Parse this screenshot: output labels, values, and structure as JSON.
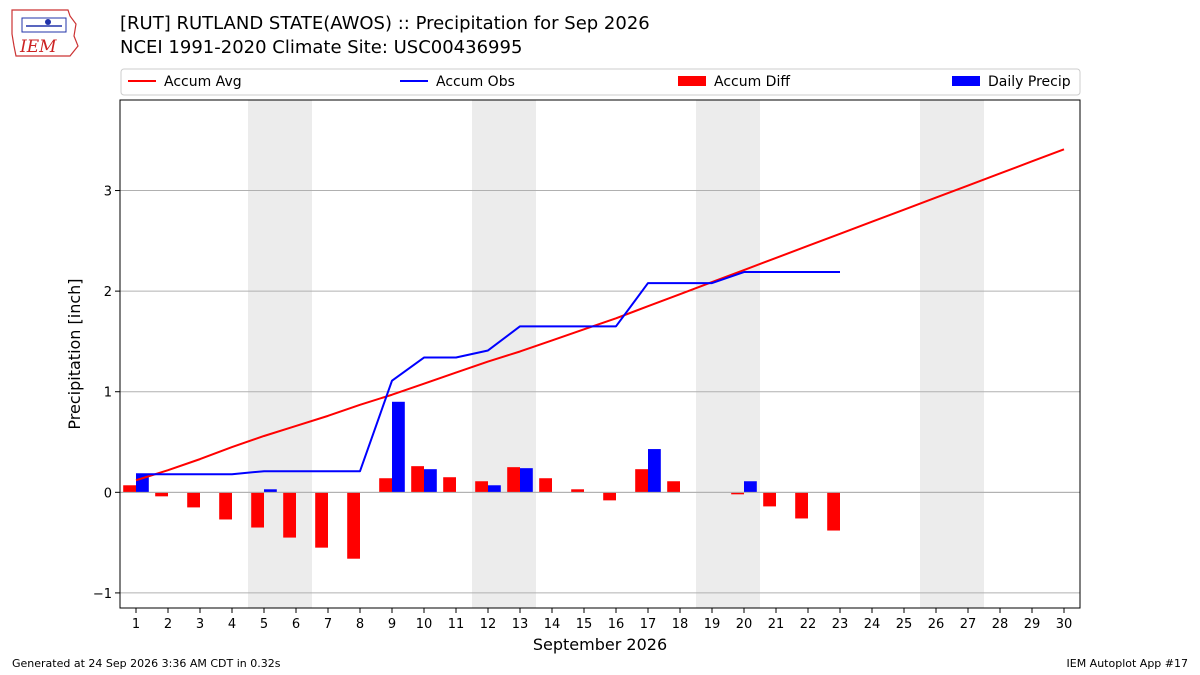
{
  "header": {
    "title_line1": "[RUT] RUTLAND STATE(AWOS) :: Precipitation for Sep 2026",
    "title_line2": "NCEI 1991-2020 Climate Site: USC00436995",
    "logo_text": "IEM"
  },
  "footer": {
    "left": "Generated at 24 Sep 2026 3:36 AM CDT in 0.32s",
    "right": "IEM Autoplot App #17"
  },
  "chart_data": {
    "type": "bar",
    "xlabel": "September 2026",
    "ylabel": "Precipitation [inch]",
    "xlim": [
      0.5,
      30.5
    ],
    "ylim": [
      -1.15,
      3.9
    ],
    "yticks": [
      -1,
      0,
      1,
      2,
      3
    ],
    "grid": "horizontal",
    "legend_placement": "top",
    "weekend_shading": [
      [
        4.5,
        6.5
      ],
      [
        11.5,
        13.5
      ],
      [
        18.5,
        20.5
      ],
      [
        25.5,
        27.5
      ]
    ],
    "x": [
      1,
      2,
      3,
      4,
      5,
      6,
      7,
      8,
      9,
      10,
      11,
      12,
      13,
      14,
      15,
      16,
      17,
      18,
      19,
      20,
      21,
      22,
      23,
      24,
      25,
      26,
      27,
      28,
      29,
      30
    ],
    "series": [
      {
        "name": "Accum Avg",
        "kind": "line",
        "color": "#ff0000",
        "values": [
          0.12,
          0.22,
          0.33,
          0.45,
          0.56,
          0.66,
          0.76,
          0.87,
          0.97,
          1.08,
          1.19,
          1.3,
          1.4,
          1.51,
          1.62,
          1.73,
          1.85,
          1.97,
          2.09,
          2.21,
          2.33,
          2.45,
          2.57,
          2.69,
          2.81,
          2.93,
          3.05,
          3.17,
          3.29,
          3.41
        ]
      },
      {
        "name": "Accum Obs",
        "kind": "line",
        "color": "#0000ff",
        "values": [
          0.18,
          0.18,
          0.18,
          0.18,
          0.21,
          0.21,
          0.21,
          0.21,
          1.11,
          1.34,
          1.34,
          1.41,
          1.65,
          1.65,
          1.65,
          1.65,
          2.08,
          2.08,
          2.08,
          2.19,
          2.19,
          2.19,
          2.19,
          null,
          null,
          null,
          null,
          null,
          null,
          null
        ]
      },
      {
        "name": "Accum Diff",
        "kind": "bar",
        "color": "#ff0000",
        "values": [
          0.07,
          -0.04,
          -0.15,
          -0.27,
          -0.35,
          -0.45,
          -0.55,
          -0.66,
          0.14,
          0.26,
          0.15,
          0.11,
          0.25,
          0.14,
          0.03,
          -0.08,
          0.23,
          0.11,
          0.0,
          -0.02,
          -0.14,
          -0.26,
          -0.38,
          null,
          null,
          null,
          null,
          null,
          null,
          null
        ]
      },
      {
        "name": "Daily Precip",
        "kind": "bar",
        "color": "#0000ff",
        "values": [
          0.18,
          0.0,
          0.0,
          0.0,
          0.03,
          0.0,
          0.0,
          0.0,
          0.9,
          0.23,
          0.0,
          0.07,
          0.24,
          0.0,
          0.0,
          0.0,
          0.43,
          0.0,
          0.0,
          0.11,
          0.0,
          0.0,
          0.0,
          null,
          null,
          null,
          null,
          null,
          null,
          null
        ]
      }
    ]
  }
}
